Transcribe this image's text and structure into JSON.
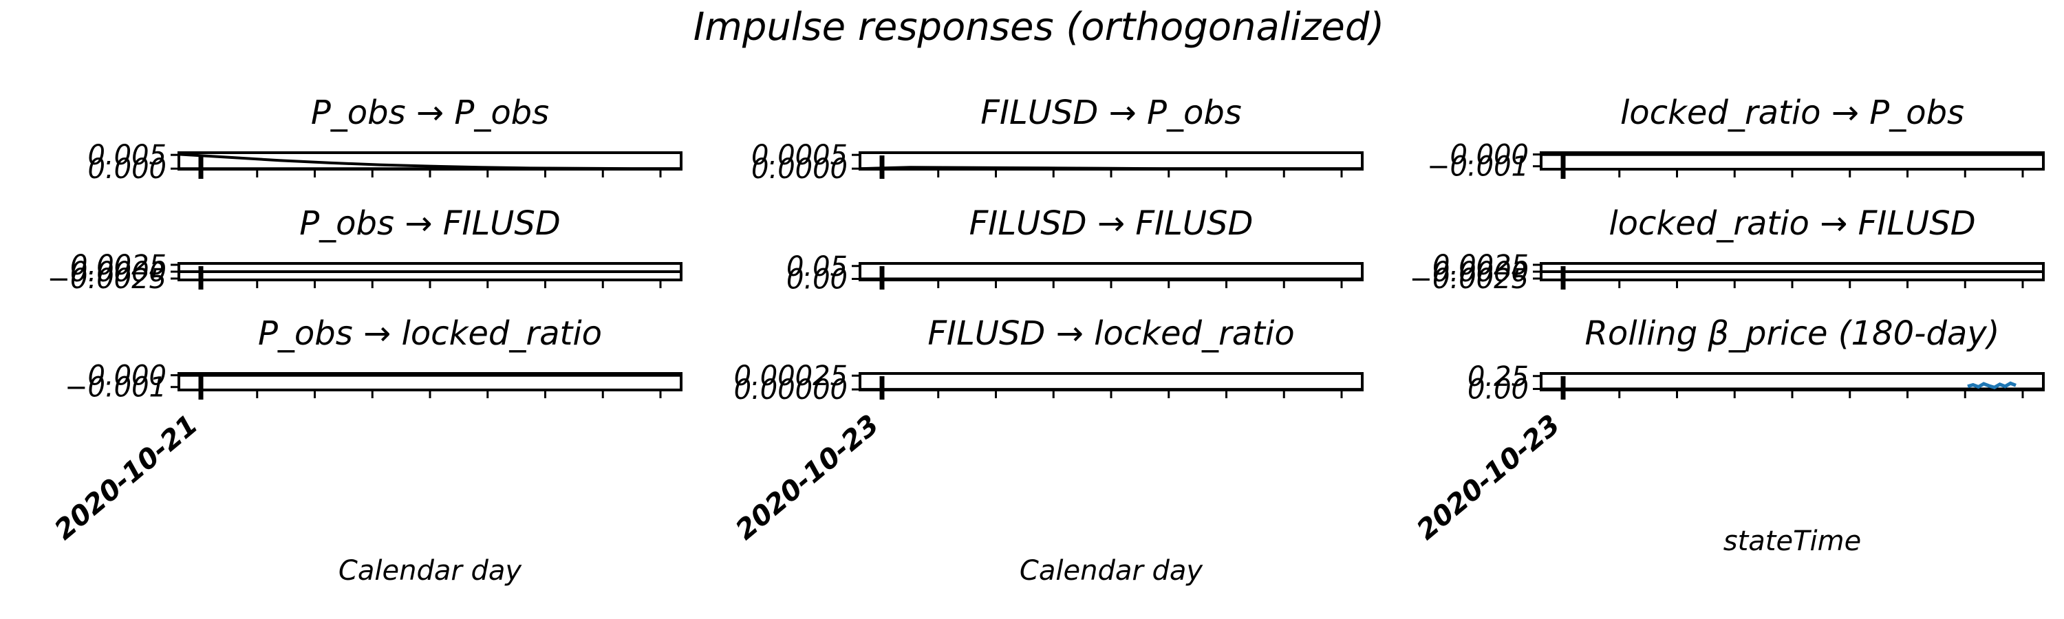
{
  "figure": {
    "title": "Impulse responses (orthogonalized)"
  },
  "chart_data": [
    {
      "type": "line",
      "title": "P_obs → P_obs",
      "ylabel_ticks": [
        "0.000",
        "0.005"
      ],
      "yticks": [
        0.0,
        0.005
      ],
      "ylim": [
        -0.0002,
        0.0058
      ],
      "xlabel": "",
      "series": [
        {
          "values": [
            0.0052,
            0.0041,
            0.003,
            0.0021,
            0.0014,
            0.0009,
            0.0005,
            0.0002,
            0.0001,
            0.0,
            0.0
          ]
        }
      ]
    },
    {
      "type": "line",
      "title": "FILUSD → P_obs",
      "ylabel_ticks": [
        "0.0000",
        "0.0005"
      ],
      "yticks": [
        0.0,
        0.0005
      ],
      "ylim": [
        -2e-05,
        0.00058
      ],
      "xlabel": "",
      "series": [
        {
          "values": [
            0.0,
            5e-05,
            4e-05,
            3e-05,
            2e-05,
            1e-05,
            0.0,
            0.0,
            0.0,
            0.0,
            0.0
          ]
        }
      ]
    },
    {
      "type": "line",
      "title": "locked_ratio → P_obs",
      "ylabel_ticks": [
        "−0.001",
        "0.000"
      ],
      "yticks": [
        -0.001,
        0.0
      ],
      "ylim": [
        -0.00125,
        0.00015
      ],
      "xlabel": "",
      "series": [
        {
          "values": [
            0.0,
            0.0,
            0.0,
            0.0,
            0.0,
            0.0,
            0.0,
            0.0,
            0.0,
            0.0,
            0.0
          ]
        }
      ]
    },
    {
      "type": "line",
      "title": "P_obs → FILUSD",
      "ylabel_ticks": [
        "−0.0025",
        "0.0000",
        "0.0025"
      ],
      "yticks": [
        -0.0025,
        0.0,
        0.0025
      ],
      "ylim": [
        -0.003,
        0.003
      ],
      "xlabel": "",
      "series": [
        {
          "values": [
            0.0,
            0.0,
            0.0,
            0.0,
            0.0,
            0.0,
            0.0,
            0.0,
            0.0,
            0.0,
            0.0
          ]
        }
      ]
    },
    {
      "type": "line",
      "title": "FILUSD → FILUSD",
      "ylabel_ticks": [
        "0.00",
        "0.05"
      ],
      "yticks": [
        0.0,
        0.05
      ],
      "ylim": [
        -0.004,
        0.06
      ],
      "xlabel": "",
      "series": [
        {
          "values": [
            0.0,
            0.0,
            0.0,
            0.0,
            0.0,
            0.0,
            0.0,
            0.0,
            0.0,
            0.0,
            0.0
          ]
        }
      ]
    },
    {
      "type": "line",
      "title": "locked_ratio → FILUSD",
      "ylabel_ticks": [
        "−0.0025",
        "0.0000",
        "0.0025"
      ],
      "yticks": [
        -0.0025,
        0.0,
        0.0025
      ],
      "ylim": [
        -0.003,
        0.003
      ],
      "xlabel": "",
      "series": [
        {
          "values": [
            0.0,
            0.0,
            0.0,
            0.0,
            0.0,
            0.0,
            0.0,
            0.0,
            0.0,
            0.0,
            0.0
          ]
        }
      ]
    },
    {
      "type": "line",
      "title": "P_obs → locked_ratio",
      "ylabel_ticks": [
        "−0.001",
        "0.000"
      ],
      "yticks": [
        -0.001,
        0.0
      ],
      "ylim": [
        -0.00125,
        0.00015
      ],
      "xlabel": "Calendar day",
      "xtick_label": "2020-10-21",
      "series": [
        {
          "values": [
            0.0,
            0.0,
            0.0,
            0.0,
            0.0,
            0.0,
            0.0,
            0.0,
            0.0,
            0.0,
            0.0
          ]
        }
      ]
    },
    {
      "type": "line",
      "title": "FILUSD → locked_ratio",
      "ylabel_ticks": [
        "0.00000",
        "0.00025"
      ],
      "yticks": [
        0.0,
        0.00025
      ],
      "ylim": [
        -1e-05,
        0.00029
      ],
      "xlabel": "Calendar day",
      "xtick_label": "2020-10-23",
      "series": [
        {
          "values": [
            0.0,
            0.0,
            0.0,
            0.0,
            0.0,
            0.0,
            0.0,
            0.0,
            0.0,
            0.0,
            0.0
          ]
        }
      ]
    },
    {
      "type": "line",
      "title": "Rolling β_price (180-day)",
      "ylabel_ticks": [
        "0.00",
        "0.25"
      ],
      "yticks": [
        0.0,
        0.25
      ],
      "ylim": [
        -0.02,
        0.3
      ],
      "xlabel": "stateTime",
      "xtick_label": "2020-10-23",
      "line_color": "#1f77b4",
      "series": [
        {
          "values": [
            0.05,
            0.08,
            0.04,
            0.1,
            0.06,
            0.03,
            0.09,
            0.05,
            0.11,
            0.07
          ]
        }
      ]
    }
  ]
}
